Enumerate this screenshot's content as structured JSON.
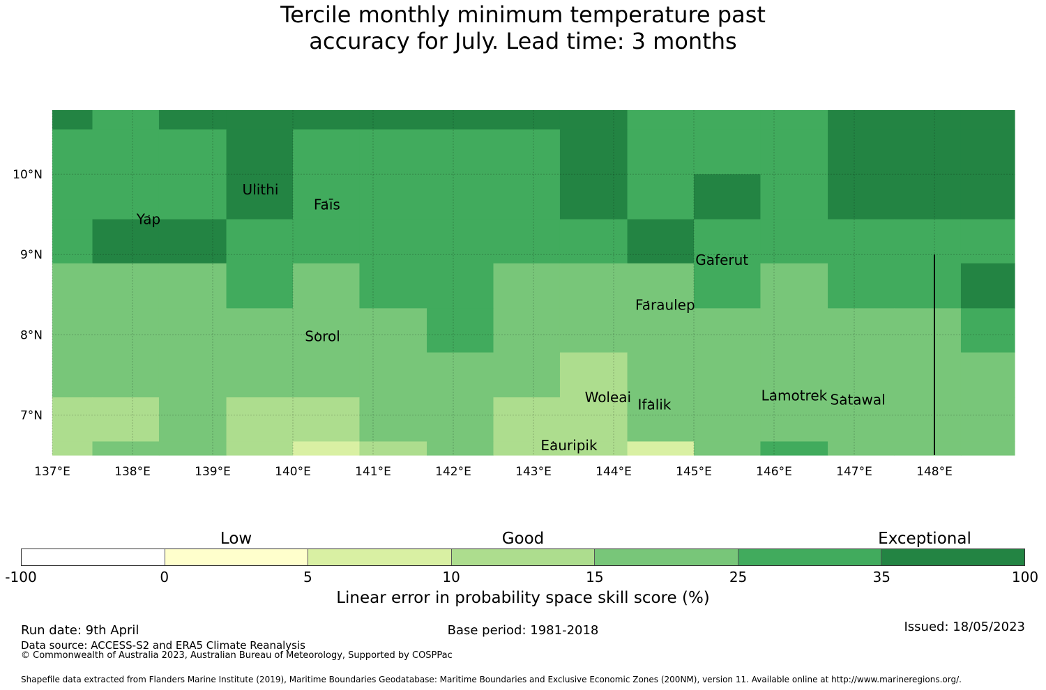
{
  "title": {
    "line1": "Tercile monthly minimum temperature past",
    "line2": "accuracy for July. Lead time: 3 months"
  },
  "map": {
    "lon_range": [
      137,
      149
    ],
    "lat_range": [
      6.5,
      10.8
    ],
    "lon_ticks": [
      {
        "value": 137,
        "label": "137°E"
      },
      {
        "value": 138,
        "label": "138°E"
      },
      {
        "value": 139,
        "label": "139°E"
      },
      {
        "value": 140,
        "label": "140°E"
      },
      {
        "value": 141,
        "label": "141°E"
      },
      {
        "value": 142,
        "label": "142°E"
      },
      {
        "value": 143,
        "label": "143°E"
      },
      {
        "value": 144,
        "label": "144°E"
      },
      {
        "value": 145,
        "label": "145°E"
      },
      {
        "value": 146,
        "label": "146°E"
      },
      {
        "value": 147,
        "label": "147°E"
      },
      {
        "value": 148,
        "label": "148°E"
      }
    ],
    "lat_ticks": [
      {
        "value": 10,
        "label": "10°N"
      },
      {
        "value": 9,
        "label": "9°N"
      },
      {
        "value": 8,
        "label": "8°N"
      },
      {
        "value": 7,
        "label": "7°N"
      }
    ],
    "grid_on": true,
    "grid_lon_edges": [
      137,
      137.5,
      138.33,
      139.17,
      140.0,
      140.83,
      141.67,
      142.5,
      143.33,
      144.17,
      145.0,
      145.83,
      146.67,
      147.5,
      148.33,
      149
    ],
    "grid_lat_edges": [
      10.8,
      10.56,
      10.0,
      9.44,
      8.89,
      8.33,
      7.78,
      7.22,
      6.67,
      6.5
    ],
    "cell_classes": [
      [
        6,
        5,
        6,
        6,
        6,
        6,
        6,
        6,
        6,
        5,
        5,
        5,
        6,
        6,
        6
      ],
      [
        5,
        5,
        5,
        6,
        5,
        5,
        5,
        5,
        6,
        5,
        5,
        5,
        6,
        6,
        6
      ],
      [
        5,
        5,
        5,
        6,
        5,
        5,
        5,
        5,
        6,
        5,
        6,
        5,
        6,
        6,
        6
      ],
      [
        5,
        6,
        6,
        5,
        5,
        5,
        5,
        5,
        5,
        6,
        5,
        5,
        5,
        5,
        5
      ],
      [
        4,
        4,
        4,
        5,
        4,
        5,
        5,
        4,
        4,
        4,
        5,
        4,
        5,
        5,
        6
      ],
      [
        4,
        4,
        4,
        4,
        4,
        4,
        5,
        4,
        4,
        4,
        4,
        4,
        4,
        4,
        5
      ],
      [
        4,
        4,
        4,
        4,
        4,
        4,
        4,
        4,
        3,
        4,
        4,
        4,
        4,
        4,
        4
      ],
      [
        3,
        3,
        4,
        3,
        3,
        4,
        4,
        3,
        3,
        4,
        4,
        4,
        4,
        4,
        4
      ],
      [
        3,
        4,
        4,
        3,
        2,
        3,
        4,
        3,
        3,
        2,
        4,
        5,
        4,
        4,
        4
      ]
    ],
    "places": [
      {
        "name": "Ulithi",
        "lon": 139.37,
        "lat": 9.75
      },
      {
        "name": "Faīs",
        "lon": 140.26,
        "lat": 9.56
      },
      {
        "name": "Yap",
        "lon": 138.05,
        "lat": 9.38
      },
      {
        "name": "Gaferut",
        "lon": 145.02,
        "lat": 8.87
      },
      {
        "name": "Faraulep",
        "lon": 144.27,
        "lat": 8.31
      },
      {
        "name": "Sorol",
        "lon": 140.15,
        "lat": 7.92
      },
      {
        "name": "Woleai",
        "lon": 143.64,
        "lat": 7.16
      },
      {
        "name": "Ifalik",
        "lon": 144.3,
        "lat": 7.07
      },
      {
        "name": "Lamotrek",
        "lon": 145.84,
        "lat": 7.18
      },
      {
        "name": "Satawal",
        "lon": 146.7,
        "lat": 7.13
      },
      {
        "name": "Eauripik",
        "lon": 143.09,
        "lat": 6.56
      }
    ],
    "boundary_line": {
      "lon": 148.0,
      "lat_from": 9.0,
      "lat_to": 6.5
    }
  },
  "legend": {
    "categories": [
      {
        "label": "Low",
        "at": 1.5
      },
      {
        "label": "Good",
        "at": 3.5
      },
      {
        "label": "Exceptional",
        "at": 6.3
      }
    ],
    "colors": [
      "#ffffff",
      "#ffffcc",
      "#d9f0a3",
      "#addd8e",
      "#78c679",
      "#41ab5d",
      "#238443"
    ],
    "ticks": [
      "-100",
      "0",
      "5",
      "10",
      "15",
      "25",
      "35",
      "100"
    ],
    "title": "Linear error in probability space skill score (%)"
  },
  "footer": {
    "run_date": "Run date: 9th April",
    "base_period": "Base period: 1981-2018",
    "issued": "Issued: 18/05/2023",
    "data_source": "Data source: ACCESS-S2 and ERA5 Climate Reanalysis",
    "copyright": "© Commonwealth of Australia 2023, Australian Bureau of Meteorology, Supported by COSPPac",
    "shapefile": "Shapefile data extracted from Flanders Marine Institute (2019), Maritime Boundaries Geodatabase: Maritime Boundaries and Exclusive Economic Zones (200NM), version 11. Available online at http://www.marineregions.org/."
  }
}
